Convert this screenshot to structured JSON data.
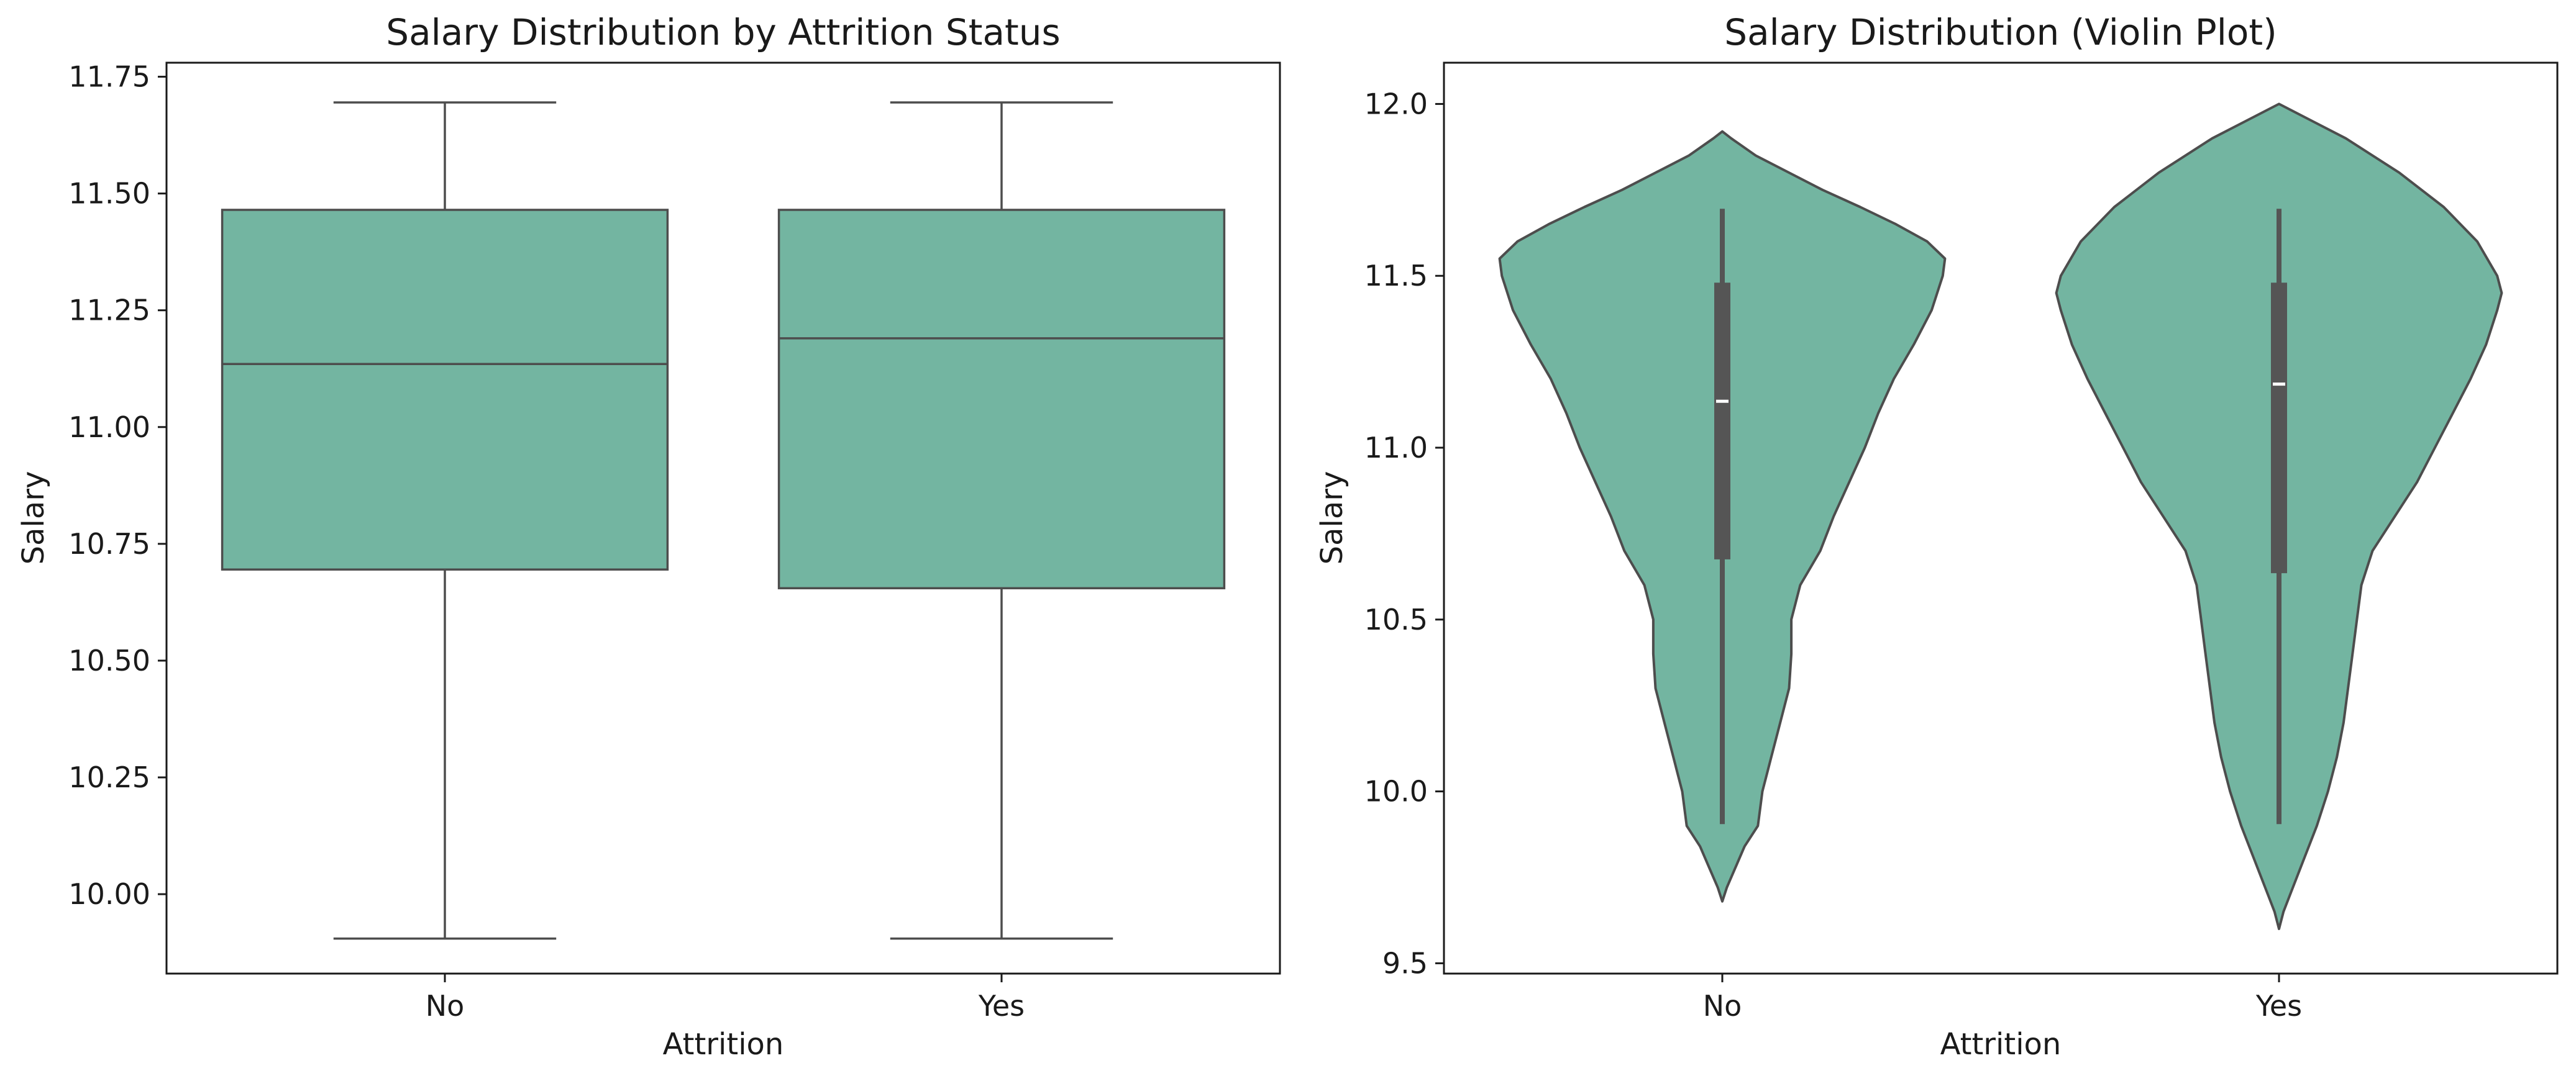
{
  "chart_data": [
    {
      "type": "box",
      "title": "Salary Distribution by Attrition Status",
      "xlabel": "Attrition",
      "ylabel": "Salary",
      "categories": [
        "No",
        "Yes"
      ],
      "ylim": [
        9.83,
        11.78
      ],
      "yticks": [
        10.0,
        10.25,
        10.5,
        10.75,
        11.0,
        11.25,
        11.5,
        11.75
      ],
      "ytick_labels": [
        "10.00",
        "10.25",
        "10.50",
        "10.75",
        "11.00",
        "11.25",
        "11.50",
        "11.75"
      ],
      "grid": false,
      "color": "#73b5a1",
      "boxes": [
        {
          "category": "No",
          "whisker_low": 9.905,
          "q1": 10.695,
          "median": 11.135,
          "q3": 11.465,
          "whisker_high": 11.695
        },
        {
          "category": "Yes",
          "whisker_low": 9.905,
          "q1": 10.655,
          "median": 11.19,
          "q3": 11.465,
          "whisker_high": 11.695
        }
      ]
    },
    {
      "type": "violin",
      "title": "Salary Distribution (Violin Plot)",
      "xlabel": "Attrition",
      "ylabel": "Salary",
      "categories": [
        "No",
        "Yes"
      ],
      "ylim": [
        9.47,
        12.12
      ],
      "yticks": [
        9.5,
        10.0,
        10.5,
        11.0,
        11.5,
        12.0
      ],
      "ytick_labels": [
        "9.5",
        "10.0",
        "10.5",
        "11.0",
        "11.5",
        "12.0"
      ],
      "grid": false,
      "color": "#73b5a1",
      "violins": [
        {
          "category": "No",
          "whisker_low": 9.905,
          "q1": 10.675,
          "median": 11.135,
          "q3": 11.48,
          "whisker_high": 11.695,
          "density": [
            [
              9.68,
              0.0
            ],
            [
              9.72,
              0.02
            ],
            [
              9.78,
              0.06
            ],
            [
              9.84,
              0.1
            ],
            [
              9.9,
              0.16
            ],
            [
              10.0,
              0.18
            ],
            [
              10.05,
              0.2
            ],
            [
              10.1,
              0.22
            ],
            [
              10.2,
              0.26
            ],
            [
              10.3,
              0.3
            ],
            [
              10.4,
              0.31
            ],
            [
              10.5,
              0.31
            ],
            [
              10.6,
              0.35
            ],
            [
              10.7,
              0.44
            ],
            [
              10.8,
              0.5
            ],
            [
              10.9,
              0.57
            ],
            [
              11.0,
              0.64
            ],
            [
              11.1,
              0.7
            ],
            [
              11.2,
              0.77
            ],
            [
              11.3,
              0.86
            ],
            [
              11.4,
              0.94
            ],
            [
              11.5,
              0.99
            ],
            [
              11.55,
              1.0
            ],
            [
              11.6,
              0.92
            ],
            [
              11.65,
              0.78
            ],
            [
              11.7,
              0.62
            ],
            [
              11.75,
              0.45
            ],
            [
              11.8,
              0.3
            ],
            [
              11.85,
              0.15
            ],
            [
              11.9,
              0.04
            ],
            [
              11.92,
              0.0
            ]
          ]
        },
        {
          "category": "Yes",
          "whisker_low": 9.905,
          "q1": 10.635,
          "median": 11.185,
          "q3": 11.48,
          "whisker_high": 11.695,
          "density": [
            [
              9.6,
              0.0
            ],
            [
              9.65,
              0.02
            ],
            [
              9.7,
              0.05
            ],
            [
              9.8,
              0.11
            ],
            [
              9.9,
              0.17
            ],
            [
              10.0,
              0.22
            ],
            [
              10.1,
              0.26
            ],
            [
              10.2,
              0.29
            ],
            [
              10.3,
              0.31
            ],
            [
              10.4,
              0.33
            ],
            [
              10.5,
              0.35
            ],
            [
              10.6,
              0.37
            ],
            [
              10.7,
              0.42
            ],
            [
              10.8,
              0.52
            ],
            [
              10.9,
              0.62
            ],
            [
              11.0,
              0.7
            ],
            [
              11.1,
              0.78
            ],
            [
              11.2,
              0.86
            ],
            [
              11.3,
              0.93
            ],
            [
              11.4,
              0.98
            ],
            [
              11.45,
              1.0
            ],
            [
              11.5,
              0.98
            ],
            [
              11.6,
              0.89
            ],
            [
              11.7,
              0.74
            ],
            [
              11.8,
              0.54
            ],
            [
              11.9,
              0.3
            ],
            [
              11.95,
              0.15
            ],
            [
              12.0,
              0.0
            ]
          ]
        }
      ]
    }
  ]
}
